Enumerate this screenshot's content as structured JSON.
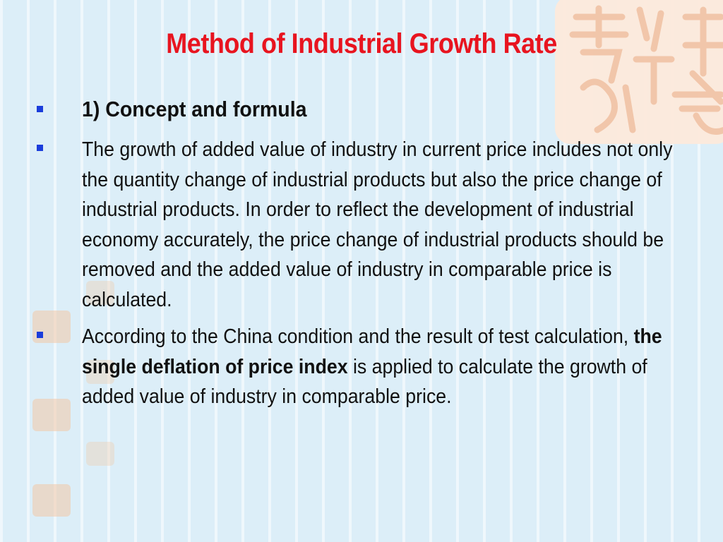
{
  "slide": {
    "title": "Method  of Industrial Growth Rate",
    "bullets": [
      {
        "text": "1) Concept and formula"
      },
      {
        "text": "The growth of added value of industry in current price includes not only the quantity change of industrial products but also the price change of industrial products. In order to reflect the development of industrial economy accurately, the price change of industrial products should be removed and the added value of industry in comparable price is calculated."
      },
      {
        "before": "According to the China condition and the result of test calculation, ",
        "bold": "the single deflation of price index",
        "after": " is applied to calculate the growth of added value of industry in comparable price."
      }
    ]
  },
  "colors": {
    "title": "#e8141f",
    "bullet": "#1a3ddb",
    "background": "#dceef8",
    "seal": "#f2c9a6"
  },
  "decor": {
    "seal_icon": "chinese-seal-art"
  }
}
